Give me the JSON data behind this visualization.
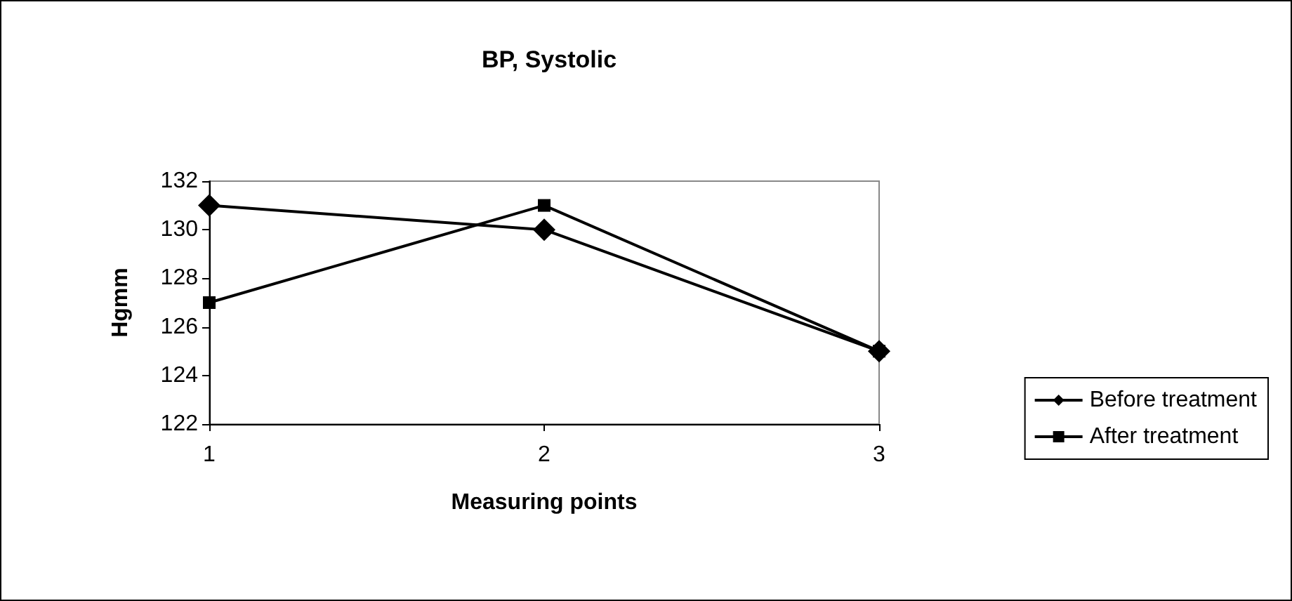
{
  "chart_data": {
    "type": "line",
    "title": "BP, Systolic",
    "xlabel": "Measuring points",
    "ylabel": "Hgmm",
    "categories": [
      "1",
      "2",
      "3"
    ],
    "series": [
      {
        "name": "Before treatment",
        "color": "#000000",
        "marker": "diamond",
        "values": [
          131,
          130,
          125
        ]
      },
      {
        "name": "After treatment",
        "color": "#000000",
        "marker": "square",
        "values": [
          127,
          131,
          125
        ]
      }
    ],
    "ylim": [
      122,
      132
    ],
    "yticks": [
      122,
      124,
      126,
      128,
      130,
      132
    ],
    "grid": false,
    "legend": "right",
    "line_style": "solid"
  }
}
